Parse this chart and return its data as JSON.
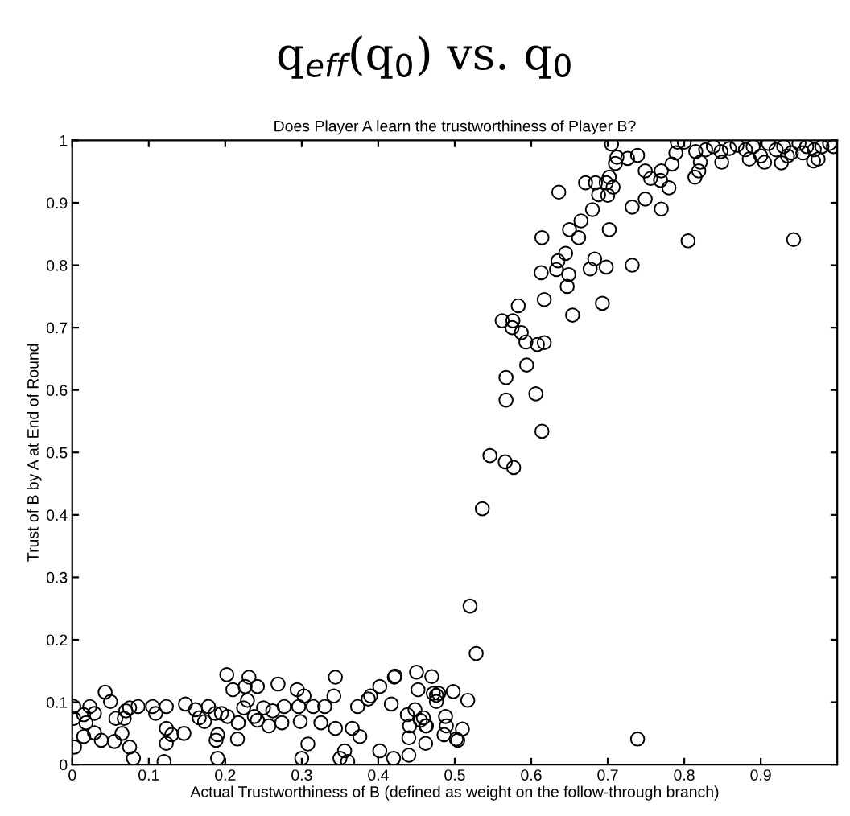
{
  "chart_data": {
    "type": "scatter",
    "title": "q$_{eff}$(q$_{0}$) vs. q$_{0}$",
    "subtitle": "Does Player A learn the trustworthiness of Player B?",
    "xlabel": "Actual Trustworthiness of B (defined as weight on the follow-through branch)",
    "ylabel": "Trust of B by A at End of Round",
    "xlim": [
      0,
      1
    ],
    "ylim": [
      0,
      1
    ],
    "xticks": [
      0,
      0.1,
      0.2,
      0.3,
      0.4,
      0.5,
      0.6,
      0.7,
      0.8,
      0.9
    ],
    "yticks": [
      0,
      0.1,
      0.2,
      0.3,
      0.4,
      0.5,
      0.6,
      0.7,
      0.8,
      0.9,
      1
    ],
    "marker": "circle",
    "grid": false,
    "legend": false,
    "series": [
      {
        "color": "#000000",
        "x": [
          0.002,
          0.002,
          0.018,
          0.015,
          0.023,
          0.029,
          0.003,
          0.015,
          0.029,
          0.038,
          0.043,
          0.05,
          0.057,
          0.055,
          0.065,
          0.068,
          0.07,
          0.075,
          0.086,
          0.075,
          0.105,
          0.109,
          0.123,
          0.123,
          0.13,
          0.123,
          0.146,
          0.148,
          0.161,
          0.166,
          0.173,
          0.178,
          0.19,
          0.188,
          0.187,
          0.195,
          0.202,
          0.21,
          0.203,
          0.216,
          0.217,
          0.224,
          0.226,
          0.231,
          0.229,
          0.238,
          0.242,
          0.242,
          0.25,
          0.257,
          0.262,
          0.269,
          0.274,
          0.277,
          0.294,
          0.296,
          0.298,
          0.303,
          0.308,
          0.315,
          0.325,
          0.33,
          0.342,
          0.344,
          0.344,
          0.356,
          0.366,
          0.373,
          0.376,
          0.387,
          0.39,
          0.402,
          0.402,
          0.417,
          0.421,
          0.422,
          0.438,
          0.44,
          0.441,
          0.448,
          0.45,
          0.452,
          0.455,
          0.459,
          0.462,
          0.476,
          0.08,
          0.12,
          0.19,
          0.3,
          0.35,
          0.36,
          0.42,
          0.44,
          0.52,
          0.528,
          0.47,
          0.472,
          0.479,
          0.498,
          0.517,
          0.476,
          0.488,
          0.489,
          0.51,
          0.486,
          0.502,
          0.504,
          0.739,
          0.463,
          0.462,
          0.536,
          0.546,
          0.566,
          0.577,
          0.614,
          0.606,
          0.567,
          0.567,
          0.594,
          0.562,
          0.576,
          0.575,
          0.587,
          0.593,
          0.608,
          0.617,
          0.583,
          0.617,
          0.654,
          0.693,
          0.647,
          0.649,
          0.613,
          0.633,
          0.635,
          0.645,
          0.677,
          0.683,
          0.698,
          0.732,
          0.662,
          0.65,
          0.614,
          0.665,
          0.68,
          0.702,
          0.805,
          0.732,
          0.749,
          0.77,
          0.636,
          0.671,
          0.684,
          0.698,
          0.688,
          0.7,
          0.707,
          0.702,
          0.71,
          0.712,
          0.726,
          0.739,
          0.705,
          0.749,
          0.756,
          0.769,
          0.77,
          0.78,
          0.784,
          0.789,
          0.791,
          0.8,
          0.814,
          0.819,
          0.821,
          0.815,
          0.828,
          0.838,
          0.848,
          0.859,
          0.869,
          0.849,
          0.943,
          0.969,
          0.927,
          0.88,
          0.89,
          0.9,
          0.91,
          0.92,
          0.93,
          0.94,
          0.95,
          0.96,
          0.97,
          0.98,
          0.99,
          0.885,
          0.905,
          0.935,
          0.955,
          0.975,
          0.995
        ],
        "values": [
          0.093,
          0.074,
          0.067,
          0.08,
          0.093,
          0.082,
          0.028,
          0.045,
          0.051,
          0.039,
          0.116,
          0.101,
          0.074,
          0.037,
          0.05,
          0.074,
          0.086,
          0.091,
          0.093,
          0.028,
          0.093,
          0.082,
          0.093,
          0.058,
          0.048,
          0.034,
          0.05,
          0.097,
          0.088,
          0.075,
          0.069,
          0.093,
          0.048,
          0.039,
          0.082,
          0.082,
          0.144,
          0.12,
          0.077,
          0.041,
          0.067,
          0.091,
          0.125,
          0.14,
          0.103,
          0.077,
          0.125,
          0.071,
          0.091,
          0.062,
          0.086,
          0.129,
          0.067,
          0.093,
          0.12,
          0.093,
          0.069,
          0.11,
          0.033,
          0.093,
          0.067,
          0.093,
          0.11,
          0.14,
          0.058,
          0.022,
          0.058,
          0.093,
          0.045,
          0.105,
          0.11,
          0.125,
          0.022,
          0.097,
          0.14,
          0.142,
          0.08,
          0.043,
          0.062,
          0.088,
          0.148,
          0.12,
          0.071,
          0.075,
          0.062,
          0.111,
          0.01,
          0.005,
          0.01,
          0.01,
          0.01,
          0.005,
          0.01,
          0.015,
          0.254,
          0.178,
          0.141,
          0.114,
          0.114,
          0.117,
          0.103,
          0.101,
          0.077,
          0.062,
          0.057,
          0.048,
          0.041,
          0.039,
          0.041,
          0.062,
          0.034,
          0.41,
          0.495,
          0.485,
          0.476,
          0.534,
          0.594,
          0.584,
          0.62,
          0.64,
          0.711,
          0.711,
          0.7,
          0.692,
          0.677,
          0.673,
          0.676,
          0.735,
          0.745,
          0.72,
          0.739,
          0.766,
          0.785,
          0.788,
          0.793,
          0.807,
          0.819,
          0.794,
          0.81,
          0.797,
          0.8,
          0.844,
          0.857,
          0.844,
          0.871,
          0.889,
          0.857,
          0.839,
          0.893,
          0.906,
          0.89,
          0.917,
          0.932,
          0.932,
          0.932,
          0.913,
          0.912,
          0.925,
          0.941,
          0.963,
          0.973,
          0.971,
          0.976,
          0.994,
          0.951,
          0.939,
          0.936,
          0.951,
          0.924,
          0.962,
          0.98,
          0.997,
          0.997,
          0.941,
          0.951,
          0.965,
          0.982,
          0.985,
          0.99,
          0.982,
          0.987,
          0.992,
          0.965,
          0.841,
          0.967,
          0.964,
          0.985,
          0.99,
          0.975,
          0.995,
          0.985,
          0.99,
          0.98,
          0.995,
          0.99,
          0.985,
          0.99,
          0.995,
          0.97,
          0.965,
          0.975,
          0.98,
          0.97,
          0.99
        ]
      }
    ]
  }
}
